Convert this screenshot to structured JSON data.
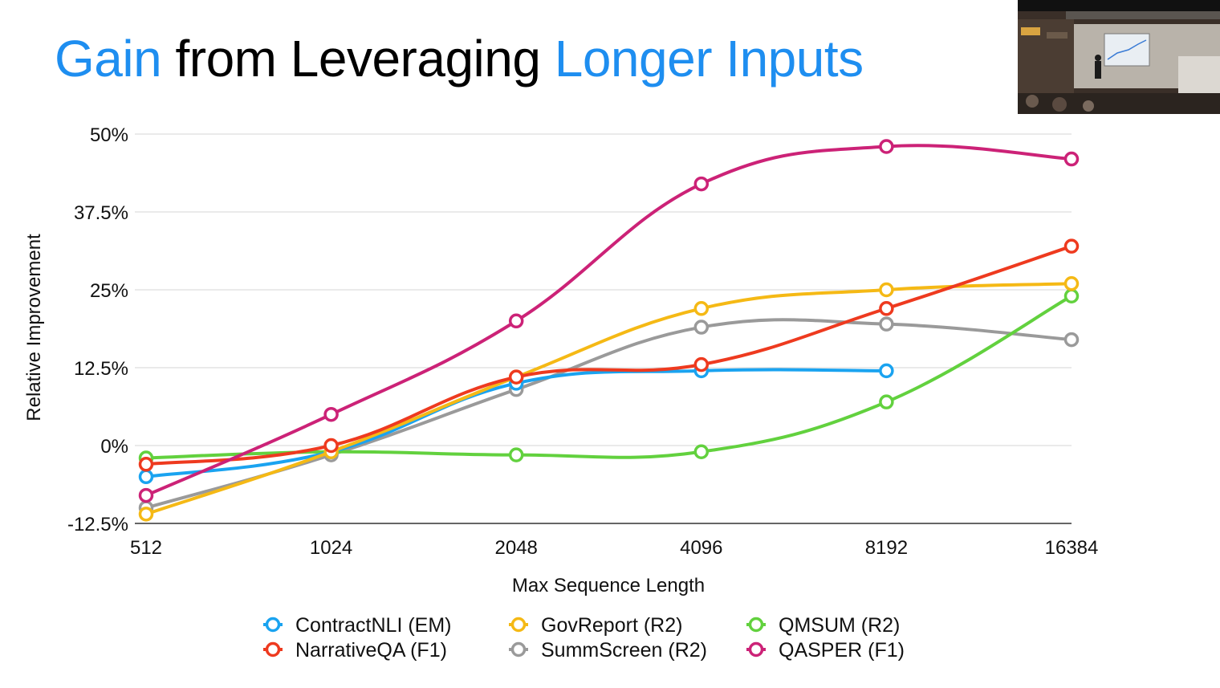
{
  "slide": {
    "title_parts": [
      {
        "text": "Gain",
        "color": "#1E8EF0"
      },
      {
        "text": " from Leveraging ",
        "color": "#000000"
      },
      {
        "text": "Longer Inputs",
        "color": "#1E8EF0"
      }
    ]
  },
  "video_thumbnail": {
    "icon": "presenter-video-icon"
  },
  "chart_data": {
    "type": "line",
    "title": "Gain from Leveraging Longer Inputs",
    "xlabel": "Max Sequence Length",
    "ylabel": "Relative Improvement",
    "categories": [
      "512",
      "1024",
      "2048",
      "4096",
      "8192",
      "16384"
    ],
    "ylim": [
      -12.5,
      50
    ],
    "yticks": [
      50,
      37.5,
      25,
      12.5,
      0,
      -12.5
    ],
    "ytick_labels": [
      "50%",
      "37.5%",
      "25%",
      "12.5%",
      "0%",
      "-12.5%"
    ],
    "grid": true,
    "legend_position": "bottom",
    "series": [
      {
        "name": "ContractNLI (EM)",
        "color": "#1AA3F0",
        "values": [
          -5,
          -1,
          10,
          12,
          12,
          null
        ]
      },
      {
        "name": "GovReport (R2)",
        "color": "#F5B915",
        "values": [
          -11,
          -1,
          11,
          22,
          25,
          26
        ]
      },
      {
        "name": "QMSUM (R2)",
        "color": "#62D13E",
        "values": [
          -2,
          -1,
          -1.5,
          -1,
          7,
          24
        ]
      },
      {
        "name": "NarrativeQA (F1)",
        "color": "#EE3A1F",
        "values": [
          -3,
          0,
          11,
          13,
          22,
          32
        ]
      },
      {
        "name": "SummScreen (R2)",
        "color": "#9A9A9A",
        "values": [
          -10,
          -1.5,
          9,
          19,
          19.5,
          17
        ]
      },
      {
        "name": "QASPER (F1)",
        "color": "#CC2277",
        "values": [
          -8,
          5,
          20,
          42,
          48,
          46
        ]
      }
    ],
    "draw_order": [
      4,
      2,
      0,
      1,
      3,
      5
    ]
  }
}
